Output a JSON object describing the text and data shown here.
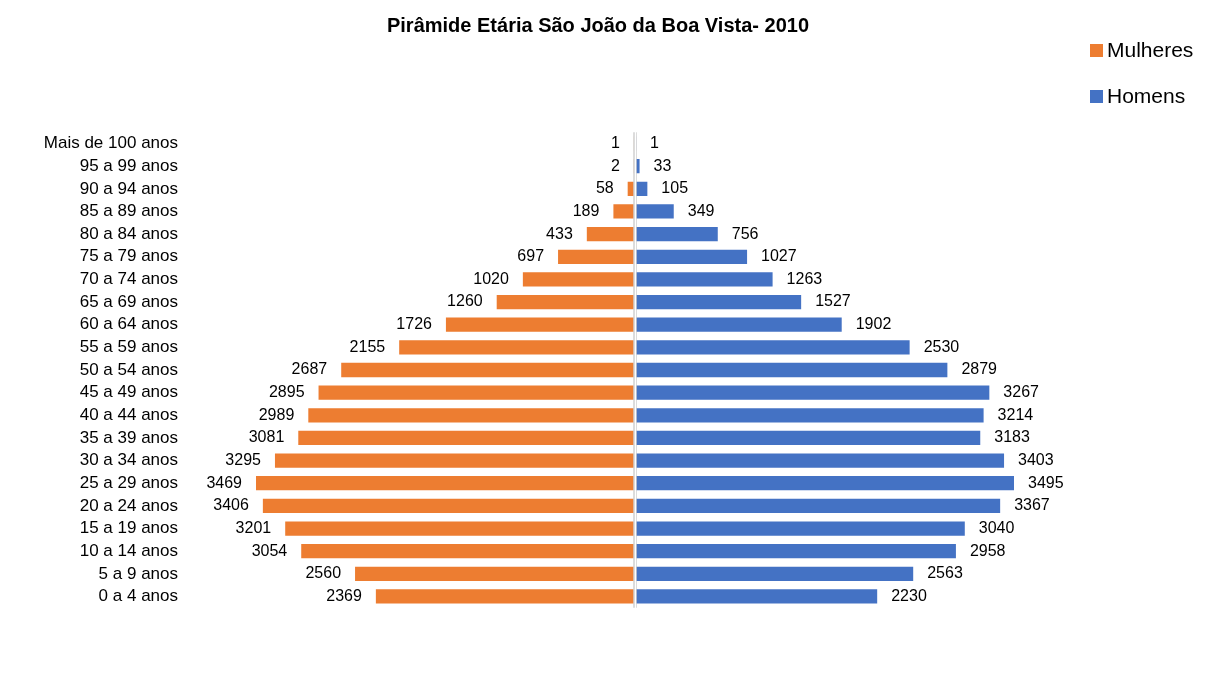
{
  "chart_data": [
    {
      "type": "bar",
      "orientation": "horizontal",
      "title": "Pirâmide Etária  São João da Boa Vista- 2010",
      "legend": "top right",
      "data_labels": true,
      "tick_labels": "y",
      "xlim": [
        3469,
        0
      ],
      "categories": [
        "Mais de 100 anos",
        "95 a 99 anos",
        "90 a 94 anos",
        "85 a 89 anos",
        "80 a 84 anos",
        "75 a 79 anos",
        "70 a 74 anos",
        "65 a 69 anos",
        "60 a 64 anos",
        "55 a 59 anos",
        "50 a 54 anos",
        "45 a 49 anos",
        "40 a 44 anos",
        "35 a 39 anos",
        "30 a 34 anos",
        "25 a 29 anos",
        "20 a 24 anos",
        "15 a 19 anos",
        "10 a 14 anos",
        "5 a 9 anos",
        "0 a 4 anos"
      ],
      "series": [
        {
          "name": "Mulheres",
          "color": "#ed7d31",
          "values": [
            1,
            2,
            58,
            189,
            433,
            697,
            1020,
            1260,
            1726,
            2155,
            2687,
            2895,
            2989,
            3081,
            3295,
            3469,
            3406,
            3201,
            3054,
            2560,
            2369
          ]
        }
      ]
    },
    {
      "type": "bar",
      "orientation": "horizontal",
      "legend": "top right",
      "data_labels": true,
      "tick_labels": false,
      "xlim": [
        0,
        3495
      ],
      "categories": [
        null,
        null,
        null,
        null,
        null,
        null,
        null,
        null,
        null,
        null,
        null,
        null,
        null,
        null,
        null,
        null,
        null,
        null,
        null,
        null,
        null
      ],
      "series": [
        {
          "name": "Homens",
          "color": "#4472c4",
          "values": [
            1,
            33,
            105,
            349,
            756,
            1027,
            1263,
            1527,
            1902,
            2530,
            2879,
            3267,
            3214,
            3183,
            3403,
            3495,
            3367,
            3040,
            2958,
            2563,
            2230
          ]
        }
      ]
    }
  ]
}
